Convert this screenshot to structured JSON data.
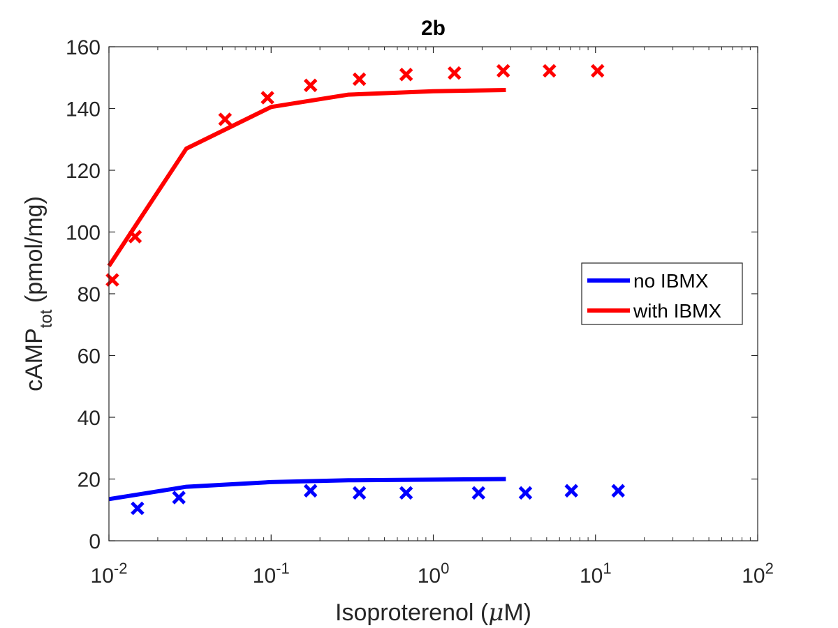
{
  "chart_data": {
    "type": "line",
    "title": "2b",
    "xlabel": {
      "main": "Isoproterenol (",
      "mu": "μ",
      "tail": "M)"
    },
    "ylabel": {
      "main": "cAMP",
      "sub": "tot",
      "tail": " (pmol/mg)"
    },
    "xscale": "log",
    "xlim": [
      0.01,
      100
    ],
    "ylim": [
      0,
      160
    ],
    "x_ticks": [
      {
        "base": "10",
        "exp": "-2",
        "value": 0.01
      },
      {
        "base": "10",
        "exp": "-1",
        "value": 0.1
      },
      {
        "base": "10",
        "exp": "0",
        "value": 1
      },
      {
        "base": "10",
        "exp": "1",
        "value": 10
      },
      {
        "base": "10",
        "exp": "2",
        "value": 100
      }
    ],
    "y_ticks": [
      "0",
      "20",
      "40",
      "60",
      "80",
      "100",
      "120",
      "140",
      "160"
    ],
    "grid": false,
    "legend_position": "right",
    "series": [
      {
        "name": "no IBMX",
        "color": "#0000ff",
        "line_x": [
          0.01,
          0.03,
          0.1,
          0.3,
          1,
          2.8
        ],
        "line_y": [
          13.5,
          17.5,
          19,
          19.6,
          19.8,
          20
        ],
        "points_x": [
          0.015,
          0.027,
          0.175,
          0.35,
          0.68,
          1.9,
          3.7,
          7.1,
          13.8
        ],
        "points_y": [
          10.5,
          14,
          16.2,
          15.5,
          15.5,
          15.5,
          15.5,
          16.2,
          16.2
        ]
      },
      {
        "name": "with IBMX",
        "color": "#ff0000",
        "line_x": [
          0.01,
          0.03,
          0.1,
          0.3,
          1,
          2.8
        ],
        "line_y": [
          89,
          127,
          140.5,
          144.5,
          145.6,
          146
        ],
        "points_x": [
          0.0105,
          0.0145,
          0.052,
          0.095,
          0.175,
          0.35,
          0.68,
          1.35,
          2.7,
          5.2,
          10.3
        ],
        "points_y": [
          84.5,
          98.5,
          136.5,
          143.5,
          147.5,
          149.5,
          151,
          151.5,
          152.2,
          152.2,
          152.2
        ]
      }
    ]
  }
}
